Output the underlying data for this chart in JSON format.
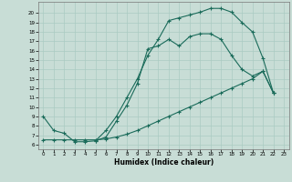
{
  "bg_color": "#c8ddd6",
  "plot_bg_color": "#c8ddd6",
  "line_color": "#1a6b5a",
  "grid_color": "#aacbc2",
  "xlabel": "Humidex (Indice chaleur)",
  "xlim": [
    -0.5,
    23.5
  ],
  "ylim": [
    5.5,
    21.2
  ],
  "xticks": [
    0,
    1,
    2,
    3,
    4,
    5,
    6,
    7,
    8,
    9,
    10,
    11,
    12,
    13,
    14,
    15,
    16,
    17,
    18,
    19,
    20,
    21,
    22,
    23
  ],
  "yticks": [
    6,
    7,
    8,
    9,
    10,
    11,
    12,
    13,
    14,
    15,
    16,
    17,
    18,
    19,
    20
  ],
  "curve1_x": [
    0,
    1,
    2,
    3,
    4,
    5,
    6,
    7,
    8,
    9,
    10,
    11,
    12,
    13,
    14,
    15,
    16,
    17,
    18,
    19,
    20,
    21,
    22
  ],
  "curve1_y": [
    9,
    7.5,
    7.2,
    6.3,
    6.3,
    6.4,
    7.5,
    9.0,
    11.0,
    13.0,
    15.5,
    17.2,
    19.2,
    19.5,
    19.8,
    20.1,
    20.5,
    20.5,
    20.1,
    19.0,
    18.0,
    15.2,
    11.5
  ],
  "curve2_x": [
    0,
    1,
    2,
    3,
    4,
    5,
    6,
    7,
    8,
    9,
    10,
    11,
    12,
    13,
    14,
    15,
    16,
    17,
    18,
    19,
    20,
    21,
    22
  ],
  "curve2_y": [
    6.5,
    6.5,
    6.5,
    6.5,
    6.5,
    6.5,
    6.6,
    6.8,
    7.1,
    7.5,
    8.0,
    8.5,
    9.0,
    9.5,
    10.0,
    10.5,
    11.0,
    11.5,
    12.0,
    12.5,
    13.0,
    13.8,
    11.5
  ],
  "curve3_x": [
    5,
    6,
    7,
    8,
    9,
    10,
    11,
    12,
    13,
    14,
    15,
    16,
    17,
    18,
    19,
    20,
    21,
    22
  ],
  "curve3_y": [
    6.4,
    6.8,
    8.5,
    10.2,
    12.5,
    16.2,
    16.5,
    17.2,
    16.5,
    17.5,
    17.8,
    17.8,
    17.2,
    15.5,
    14.0,
    13.3,
    13.8,
    11.5
  ]
}
